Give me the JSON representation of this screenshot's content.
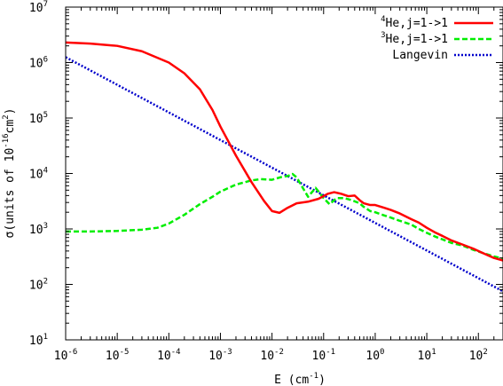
{
  "chart_data": {
    "type": "line",
    "title": "",
    "xlabel": "E (cm",
    "xlabel_exp": "-1",
    "xlabel_close": ")",
    "ylabel": "σ(units of 10",
    "ylabel_exp": "-16",
    "ylabel_mid": "cm",
    "ylabel_exp2": "2",
    "ylabel_close": ")",
    "x_scale": "log",
    "y_scale": "log",
    "xlim": [
      1e-06,
      300
    ],
    "ylim": [
      10,
      10000000.0
    ],
    "grid": false,
    "legend_position": "top-right",
    "x_ticks": [
      {
        "value": 1e-06,
        "base": "10",
        "exp": "-6"
      },
      {
        "value": 1e-05,
        "base": "10",
        "exp": "-5"
      },
      {
        "value": 0.0001,
        "base": "10",
        "exp": "-4"
      },
      {
        "value": 0.001,
        "base": "10",
        "exp": "-3"
      },
      {
        "value": 0.01,
        "base": "10",
        "exp": "-2"
      },
      {
        "value": 0.1,
        "base": "10",
        "exp": "-1"
      },
      {
        "value": 1,
        "base": "10",
        "exp": "0"
      },
      {
        "value": 10,
        "base": "10",
        "exp": "1"
      },
      {
        "value": 100,
        "base": "10",
        "exp": "2"
      }
    ],
    "y_ticks": [
      {
        "value": 10,
        "base": "10",
        "exp": "1"
      },
      {
        "value": 100,
        "base": "10",
        "exp": "2"
      },
      {
        "value": 1000,
        "base": "10",
        "exp": "3"
      },
      {
        "value": 10000,
        "base": "10",
        "exp": "4"
      },
      {
        "value": 100000,
        "base": "10",
        "exp": "5"
      },
      {
        "value": 1000000,
        "base": "10",
        "exp": "6"
      },
      {
        "value": 10000000,
        "base": "10",
        "exp": "7"
      }
    ],
    "series": [
      {
        "name_sup": "4",
        "name": "He,j=1->1",
        "color": "#ff0000",
        "dash": "solid",
        "x": [
          1e-06,
          3e-06,
          1e-05,
          3e-05,
          0.0001,
          0.0002,
          0.0004,
          0.0007,
          0.001,
          0.002,
          0.004,
          0.007,
          0.01,
          0.014,
          0.02,
          0.03,
          0.05,
          0.08,
          0.12,
          0.16,
          0.22,
          0.3,
          0.4,
          0.5,
          0.6,
          0.8,
          1.0,
          1.5,
          2,
          3,
          5,
          7,
          10,
          15,
          20,
          30,
          50,
          80,
          120,
          200,
          300
        ],
        "y": [
          2300000,
          2200000,
          2000000,
          1600000,
          1000000,
          640000,
          330000,
          140000,
          70000,
          21000,
          7000,
          3200,
          2100,
          1950,
          2400,
          2900,
          3100,
          3500,
          4300,
          4600,
          4300,
          3900,
          4000,
          3300,
          2900,
          2700,
          2700,
          2400,
          2200,
          1900,
          1500,
          1300,
          1050,
          850,
          750,
          620,
          520,
          440,
          370,
          300,
          270
        ]
      },
      {
        "name_sup": "3",
        "name": "He,j=1->1",
        "color": "#00ee00",
        "dash": "6,3",
        "x": [
          1e-06,
          3e-06,
          1e-05,
          3e-05,
          6e-05,
          0.0001,
          0.0002,
          0.0004,
          0.0007,
          0.001,
          0.002,
          0.004,
          0.006,
          0.01,
          0.015,
          0.02,
          0.025,
          0.03,
          0.04,
          0.05,
          0.07,
          0.1,
          0.13,
          0.18,
          0.25,
          0.35,
          0.5,
          0.6,
          0.8,
          1.0,
          1.5,
          2,
          3,
          5,
          7,
          10,
          15,
          20,
          30,
          50,
          80,
          120,
          200,
          300
        ],
        "y": [
          900,
          900,
          920,
          970,
          1050,
          1250,
          1800,
          2800,
          3800,
          4700,
          6300,
          7500,
          7900,
          7700,
          8600,
          9000,
          9800,
          8500,
          5400,
          3800,
          5500,
          3600,
          2800,
          3600,
          3600,
          3300,
          2900,
          2500,
          2100,
          2000,
          1750,
          1600,
          1400,
          1200,
          1000,
          850,
          720,
          650,
          560,
          500,
          420,
          370,
          320,
          290
        ]
      },
      {
        "name": "Langevin",
        "color": "#0000cc",
        "dash": "2,2",
        "x": [
          1e-06,
          300
        ],
        "y": [
          1250000,
          75
        ]
      }
    ]
  }
}
